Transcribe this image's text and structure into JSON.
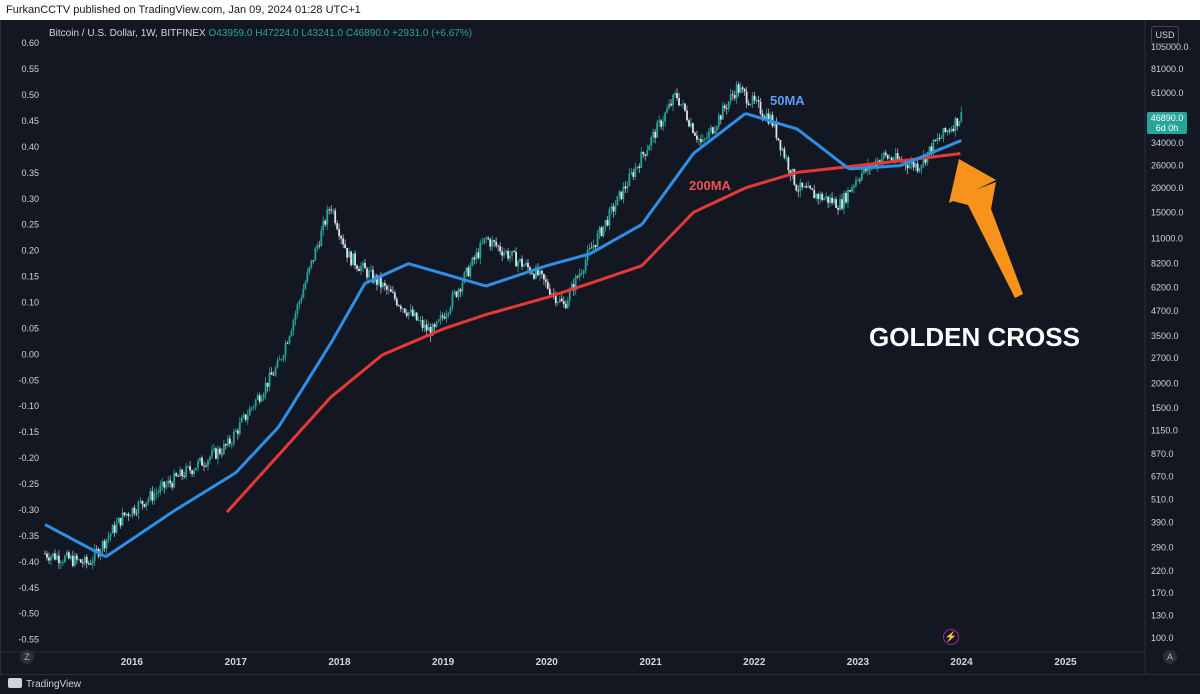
{
  "header": {
    "published": "FurkanCCTV published on TradingView.com, Jan 09, 2024 01:28 UTC+1"
  },
  "legend": {
    "symbol": "Bitcoin / U.S. Dollar, 1W, BITFINEX",
    "open": "O43959.0",
    "high": "H47224.0",
    "low": "L43241.0",
    "close": "C46890.0",
    "change": "+2931.0 (+6.67%)"
  },
  "currency_label": "USD",
  "price_tag": {
    "price": "46890.0",
    "countdown": "6d 0h"
  },
  "colors": {
    "up": "#26a69a",
    "down": "#ef5350",
    "ma50": "#2f8fe6",
    "ma200": "#e53935",
    "arrow": "#f7931a",
    "background": "#131722"
  },
  "icons": [
    "lightning-icon",
    "tradingview-logo-icon"
  ],
  "footer": {
    "brand": "TradingView",
    "z_button": "Z",
    "a_button": "A"
  },
  "chart_data": {
    "type": "line",
    "title": "Bitcoin / U.S. Dollar, 1W, BITFINEX",
    "left_axis_ticks": [
      "0.60",
      "0.55",
      "0.50",
      "0.45",
      "0.40",
      "0.35",
      "0.30",
      "0.25",
      "0.20",
      "0.15",
      "0.10",
      "0.05",
      "0.00",
      "-0.05",
      "-0.10",
      "-0.15",
      "-0.20",
      "-0.25",
      "-0.30",
      "-0.35",
      "-0.40",
      "-0.45",
      "-0.50",
      "-0.55"
    ],
    "left_axis_range": [
      -0.57,
      0.61
    ],
    "right_axis_scale": "log",
    "right_axis_ticks": [
      "105000.0",
      "81000.0",
      "61000.0",
      "46890.0",
      "34000.0",
      "26000.0",
      "20000.0",
      "15000.0",
      "11000.0",
      "8200.0",
      "6200.0",
      "4700.0",
      "3500.0",
      "2700.0",
      "2000.0",
      "1500.0",
      "1150.0",
      "870.0",
      "670.0",
      "510.0",
      "390.0",
      "290.0",
      "220.0",
      "170.0",
      "130.0",
      "100.0"
    ],
    "x_ticks": [
      "2016",
      "2017",
      "2018",
      "2019",
      "2020",
      "2021",
      "2022",
      "2023",
      "2024",
      "2025"
    ],
    "x_range": [
      "2015-03-01",
      "2025-10-01"
    ],
    "series": [
      {
        "name": "Price",
        "x": [
          "2015-03",
          "2015-08",
          "2015-12",
          "2016-06",
          "2016-12",
          "2017-06",
          "2017-12",
          "2018-02",
          "2018-06",
          "2018-11",
          "2018-12",
          "2019-06",
          "2019-12",
          "2020-03",
          "2020-06",
          "2020-12",
          "2021-04",
          "2021-07",
          "2021-11",
          "2022-03",
          "2022-06",
          "2022-11",
          "2023-01",
          "2023-04",
          "2023-08",
          "2023-10",
          "2024-01"
        ],
        "values": [
          270,
          240,
          420,
          650,
          960,
          2500,
          16500,
          9000,
          6300,
          3800,
          3700,
          11000,
          7200,
          5000,
          9500,
          29000,
          60000,
          33000,
          65000,
          45000,
          20000,
          16500,
          23000,
          29000,
          26000,
          34000,
          46890
        ]
      },
      {
        "name": "50MA",
        "x": [
          "2015-03",
          "2015-10",
          "2016-06",
          "2017-01",
          "2017-06",
          "2017-12",
          "2018-04",
          "2018-09",
          "2019-06",
          "2020-01",
          "2020-06",
          "2020-12",
          "2021-06",
          "2021-12",
          "2022-06",
          "2022-12",
          "2023-06",
          "2024-01"
        ],
        "values": [
          380,
          260,
          450,
          700,
          1200,
          3200,
          6500,
          8200,
          6300,
          8000,
          9200,
          13000,
          30000,
          48000,
          40000,
          25000,
          26000,
          35000
        ]
      },
      {
        "name": "200MA",
        "x": [
          "2016-12",
          "2017-12",
          "2018-06",
          "2019-01",
          "2019-06",
          "2020-01",
          "2020-06",
          "2020-12",
          "2021-06",
          "2021-12",
          "2022-06",
          "2023-01",
          "2023-06",
          "2024-01"
        ],
        "values": [
          440,
          1700,
          2800,
          3800,
          4500,
          5500,
          6500,
          8000,
          15000,
          20000,
          24000,
          26000,
          27500,
          30000
        ]
      }
    ],
    "annotations": [
      {
        "text": "50MA",
        "color": "#5b9cf5"
      },
      {
        "text": "200MA",
        "color": "#ef5350"
      },
      {
        "text": "GOLDEN CROSS",
        "color": "#ffffff"
      }
    ],
    "grid": false
  }
}
